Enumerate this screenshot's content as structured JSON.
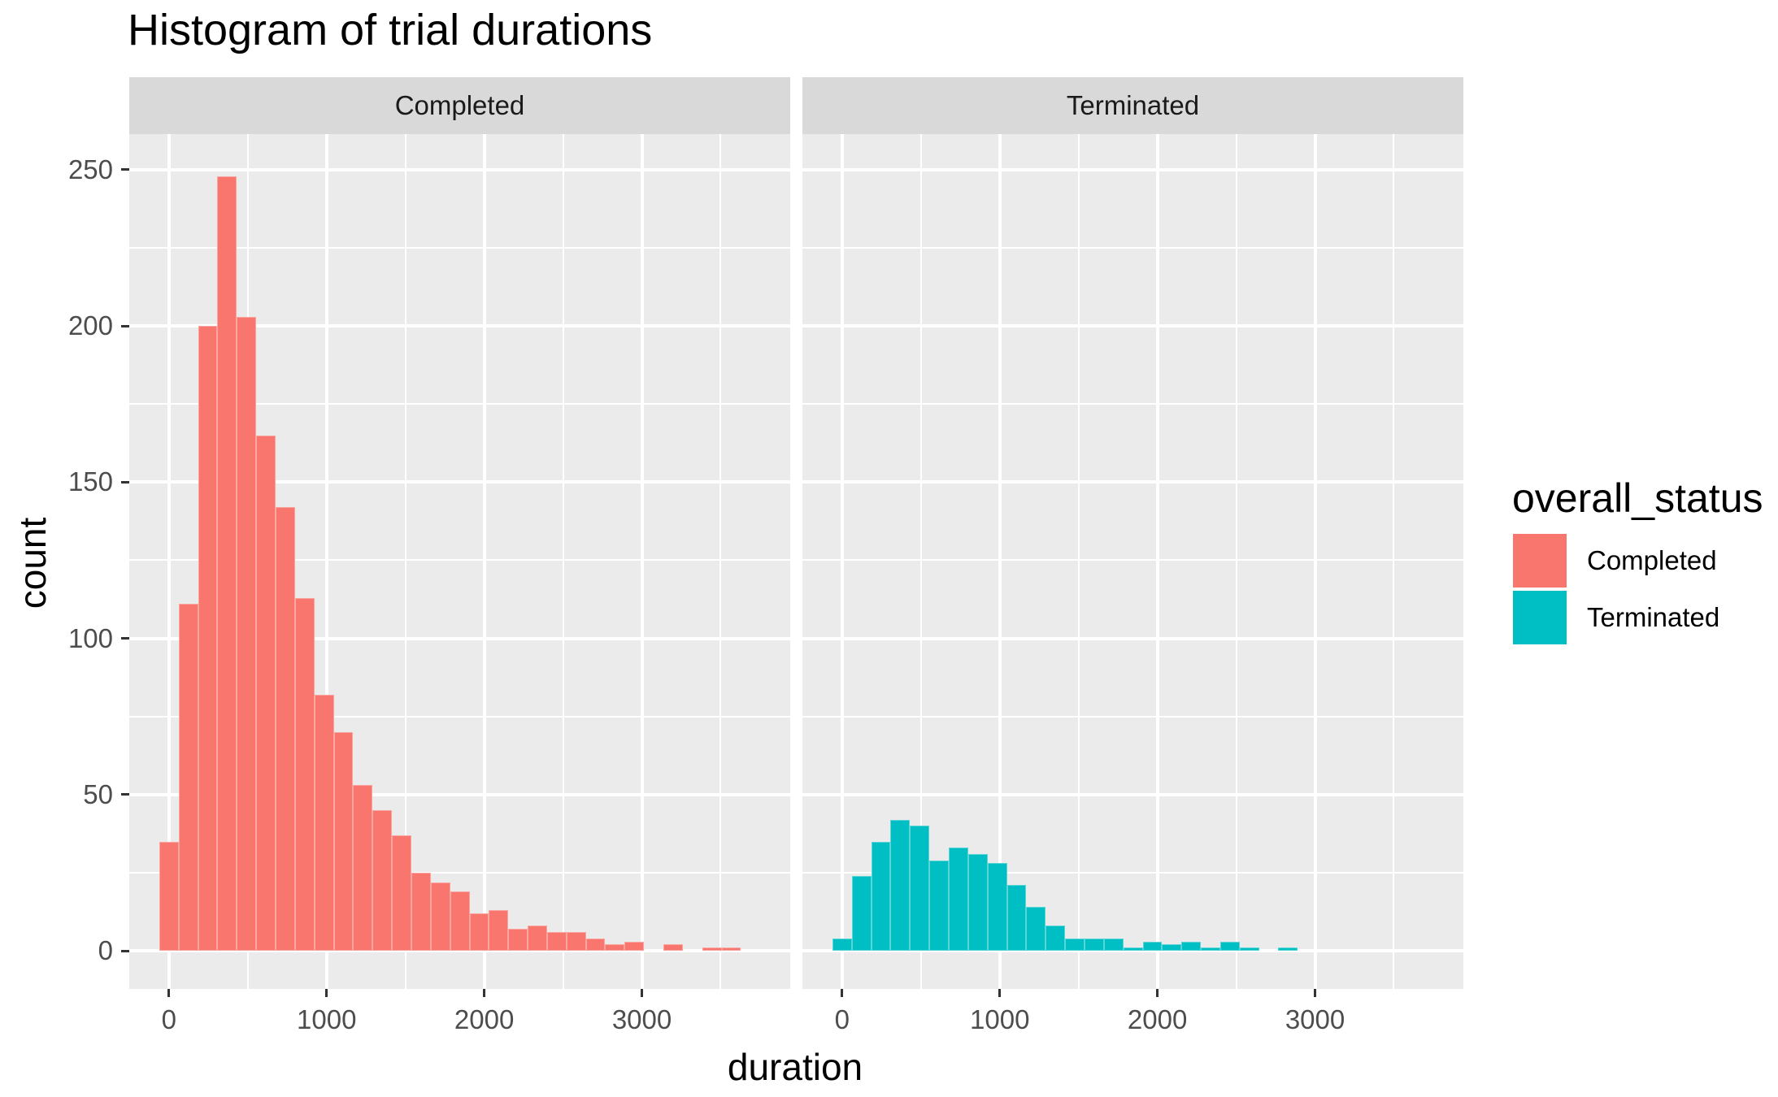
{
  "title": "Histogram of trial durations",
  "legend": {
    "title": "overall_status",
    "items": [
      {
        "label": "Completed",
        "color": "#F8766D"
      },
      {
        "label": "Terminated",
        "color": "#00BFC4"
      }
    ]
  },
  "chart_data": {
    "type": "bar",
    "subtype": "faceted_histogram",
    "title": "Histogram of trial durations",
    "xlabel": "duration",
    "ylabel": "count",
    "bin_width": 123,
    "first_bin_left_edge": -61.5,
    "x_axis": {
      "title": "duration",
      "major_ticks": [
        0,
        1000,
        2000,
        3000
      ],
      "minor_ticks": [
        500,
        1500,
        2500,
        3500
      ],
      "range": [
        -252,
        3941
      ]
    },
    "y_axis": {
      "title": "count",
      "major_ticks": [
        0,
        50,
        100,
        150,
        200,
        250
      ],
      "minor_ticks": [
        25,
        75,
        125,
        175,
        225
      ],
      "range": [
        -12.2,
        261.4
      ]
    },
    "facets": [
      {
        "name": "Completed",
        "color": "#F8766D",
        "counts": [
          35,
          111,
          200,
          248,
          203,
          165,
          142,
          113,
          82,
          70,
          53,
          45,
          37,
          25,
          22,
          19,
          12,
          13,
          7,
          8,
          6,
          6,
          4,
          2,
          3,
          0,
          2,
          0,
          1,
          1
        ]
      },
      {
        "name": "Terminated",
        "color": "#00BFC4",
        "counts": [
          4,
          24,
          35,
          42,
          40,
          29,
          33,
          31,
          28,
          21,
          14,
          8,
          4,
          4,
          4,
          1,
          3,
          2,
          3,
          1,
          3,
          1,
          0,
          1
        ]
      }
    ],
    "style": {
      "panel_background": "#EBEBEB",
      "strip_background": "#D9D9D9",
      "grid_color": "#FFFFFF",
      "tick_color": "#333333",
      "tick_label_color": "#4D4D4D",
      "strip_text_color": "#1A1A1A",
      "title_color": "#000000",
      "plot_background": "#FFFFFF"
    },
    "legend_position": "right",
    "grid": true
  }
}
